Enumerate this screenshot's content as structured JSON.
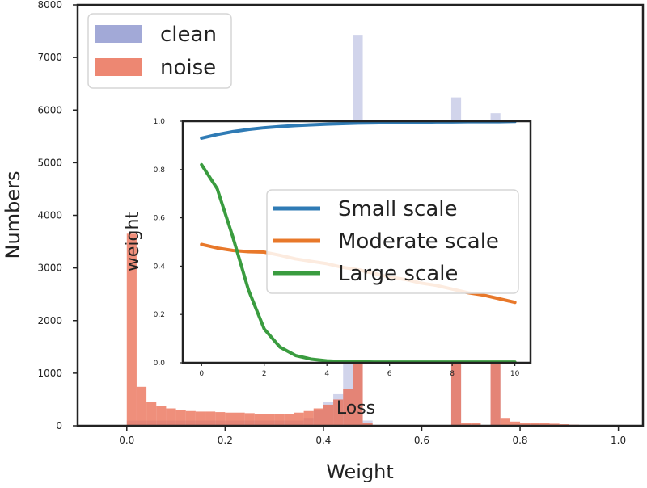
{
  "chart_data": [
    {
      "id": "main",
      "type": "bar",
      "xlabel": "Weight",
      "ylabel": "Numbers",
      "xlim": [
        -0.1,
        1.05
      ],
      "ylim": [
        0,
        8000
      ],
      "xticks": [
        "0.0",
        "0.2",
        "0.4",
        "0.6",
        "0.8",
        "1.0"
      ],
      "yticks": [
        "0",
        "1000",
        "2000",
        "3000",
        "4000",
        "5000",
        "6000",
        "7000",
        "8000"
      ],
      "legend": {
        "location": "top-left",
        "entries": [
          {
            "label": "clean",
            "color": "#7b84c6"
          },
          {
            "label": "noise",
            "color": "#e9694f"
          }
        ]
      },
      "bin_edges": [
        0.0,
        0.02,
        0.04,
        0.06,
        0.08,
        0.1,
        0.12,
        0.14,
        0.16,
        0.18,
        0.2,
        0.22,
        0.24,
        0.26,
        0.28,
        0.3,
        0.32,
        0.34,
        0.36,
        0.38,
        0.4,
        0.42,
        0.44,
        0.46,
        0.48,
        0.5,
        0.52,
        0.54,
        0.56,
        0.58,
        0.6,
        0.62,
        0.64,
        0.66,
        0.68,
        0.7,
        0.72,
        0.74,
        0.76,
        0.78,
        0.8,
        0.82,
        0.84,
        0.86,
        0.88,
        0.9,
        0.92,
        0.94,
        0.96,
        0.98,
        1.0
      ],
      "series": [
        {
          "name": "clean",
          "color": "#7b84c6",
          "opacity": 0.35,
          "values": [
            100,
            100,
            100,
            100,
            100,
            100,
            100,
            100,
            100,
            100,
            100,
            100,
            100,
            100,
            100,
            100,
            100,
            100,
            150,
            300,
            450,
            600,
            1950,
            7430,
            100,
            0,
            0,
            0,
            0,
            0,
            0,
            0,
            0,
            6240,
            0,
            0,
            0,
            5940,
            0,
            0,
            0,
            0,
            0,
            0,
            0,
            0,
            0,
            0,
            0,
            0
          ]
        },
        {
          "name": "noise",
          "color": "#e9694f",
          "opacity": 0.75,
          "values": [
            3650,
            740,
            450,
            380,
            330,
            300,
            280,
            270,
            270,
            260,
            250,
            250,
            240,
            230,
            230,
            220,
            230,
            250,
            280,
            330,
            400,
            500,
            700,
            1640,
            50,
            0,
            0,
            0,
            0,
            0,
            0,
            0,
            0,
            1680,
            50,
            50,
            0,
            2050,
            150,
            80,
            60,
            50,
            50,
            40,
            30,
            20,
            0,
            0,
            0,
            0
          ]
        }
      ]
    },
    {
      "id": "inset",
      "type": "line",
      "xlabel": "Loss",
      "ylabel": "weight",
      "xlim": [
        -0.6,
        10.5
      ],
      "ylim": [
        0,
        1
      ],
      "xticks": [
        "0",
        "2",
        "4",
        "6",
        "8",
        "10"
      ],
      "yticks": [
        "0.0",
        "0.2",
        "0.4",
        "0.6",
        "0.8",
        "1.0"
      ],
      "legend": {
        "location": "center-right"
      },
      "x": [
        0,
        0.5,
        1,
        1.5,
        2,
        2.5,
        3,
        3.5,
        4,
        4.5,
        5,
        5.5,
        6,
        6.5,
        7,
        7.5,
        8,
        8.5,
        9,
        9.5,
        10
      ],
      "series": [
        {
          "name": "Small scale",
          "color": "#2f7bb5",
          "values": [
            0.93,
            0.945,
            0.957,
            0.966,
            0.973,
            0.978,
            0.982,
            0.985,
            0.988,
            0.99,
            0.992,
            0.993,
            0.994,
            0.995,
            0.996,
            0.997,
            0.997,
            0.998,
            0.998,
            0.998,
            0.999
          ]
        },
        {
          "name": "Moderate scale",
          "color": "#e8782a",
          "values": [
            0.49,
            0.475,
            0.465,
            0.46,
            0.458,
            0.445,
            0.43,
            0.42,
            0.41,
            0.395,
            0.385,
            0.37,
            0.355,
            0.345,
            0.33,
            0.32,
            0.305,
            0.29,
            0.28,
            0.265,
            0.25
          ]
        },
        {
          "name": "Large scale",
          "color": "#3a9c3f",
          "values": [
            0.82,
            0.72,
            0.52,
            0.3,
            0.14,
            0.065,
            0.03,
            0.015,
            0.008,
            0.005,
            0.004,
            0.003,
            0.003,
            0.003,
            0.003,
            0.003,
            0.003,
            0.003,
            0.003,
            0.003,
            0.003
          ]
        }
      ]
    }
  ]
}
